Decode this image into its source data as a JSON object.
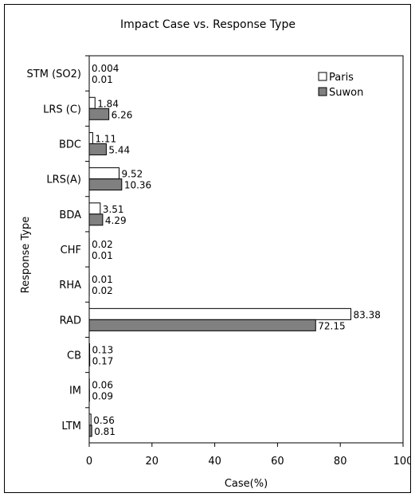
{
  "chart_data": {
    "type": "bar",
    "orientation": "horizontal",
    "title": "Impact Case vs. Response Type",
    "xlabel": "Case(%)",
    "ylabel": "Response Type",
    "xlim": [
      0,
      100
    ],
    "xticks": [
      0,
      20,
      40,
      60,
      80,
      100
    ],
    "grid": false,
    "legend_position": "top-right",
    "categories": [
      "STM (SO2)",
      "LRS (C)",
      "BDC",
      "LRS(A)",
      "BDA",
      "CHF",
      "RHA",
      "RAD",
      "CB",
      "IM",
      "LTM"
    ],
    "series": [
      {
        "name": "Paris",
        "color": "#ffffff",
        "values": [
          0.004,
          1.84,
          1.11,
          9.52,
          3.51,
          0.02,
          0.01,
          83.38,
          0.13,
          0.06,
          0.56
        ],
        "labels": [
          "0.004",
          "1.84",
          "1.11",
          "9.52",
          "3.51",
          "0.02",
          "0.01",
          "83.38",
          "0.13",
          "0.06",
          "0.56"
        ]
      },
      {
        "name": "Suwon",
        "color": "#808080",
        "values": [
          0.01,
          6.26,
          5.44,
          10.36,
          4.29,
          0.01,
          0.02,
          72.15,
          0.17,
          0.09,
          0.81
        ],
        "labels": [
          "0.01",
          "6.26",
          "5.44",
          "10.36",
          "4.29",
          "0.01",
          "0.02",
          "72.15",
          "0.17",
          "0.09",
          "0.81"
        ]
      }
    ]
  }
}
